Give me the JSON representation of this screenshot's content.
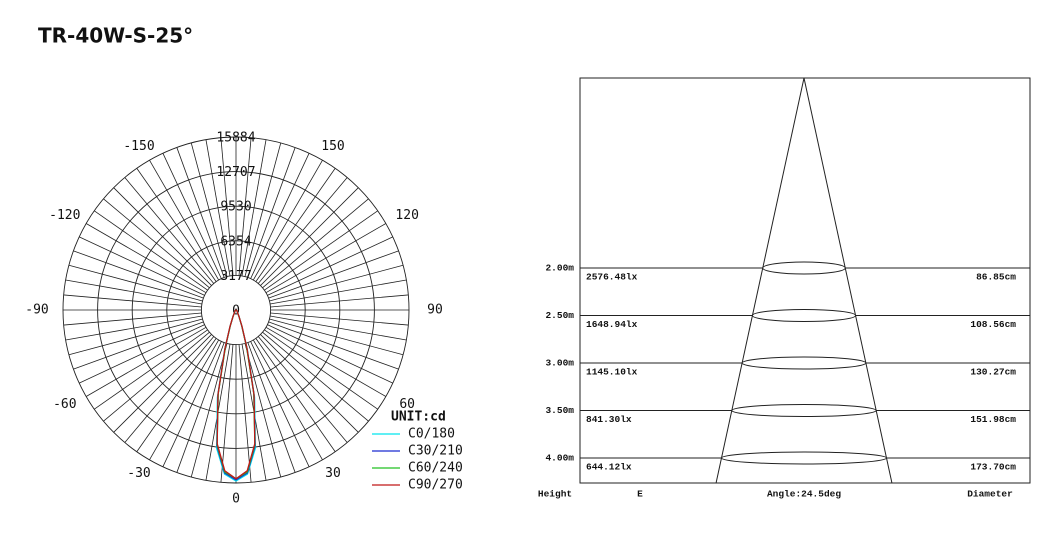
{
  "title": "TR-40W-S-25°",
  "chart_data": [
    {
      "type": "polar",
      "unit_label": "UNIT:cd",
      "rlim": [
        0,
        15884
      ],
      "rticks": [
        0,
        3177,
        6354,
        9530,
        12707,
        15884
      ],
      "angle_ticks": [
        -150,
        -120,
        -90,
        -60,
        -30,
        0,
        30,
        60,
        90,
        120,
        150
      ],
      "angles": [
        -90,
        -60,
        -40,
        -30,
        -25,
        -20,
        -16,
        -12,
        -8,
        -4,
        0,
        4,
        8,
        12,
        16,
        20,
        25,
        30,
        40,
        60,
        90
      ],
      "series": [
        {
          "name": "C0/180",
          "color": "#00e5ee",
          "values": [
            0,
            50,
            150,
            300,
            600,
            1600,
            3800,
            8200,
            12800,
            15100,
            15700,
            15100,
            12800,
            8200,
            3800,
            1600,
            600,
            300,
            150,
            50,
            0
          ]
        },
        {
          "name": "C30/210",
          "color": "#1a2ad0",
          "values": [
            0,
            50,
            150,
            300,
            600,
            1500,
            3600,
            7900,
            12600,
            15000,
            15600,
            15000,
            12600,
            7900,
            3600,
            1500,
            600,
            300,
            150,
            50,
            0
          ]
        },
        {
          "name": "C60/240",
          "color": "#22c022",
          "values": [
            0,
            50,
            150,
            300,
            600,
            1500,
            3500,
            7800,
            12500,
            14900,
            15500,
            14900,
            12500,
            7800,
            3500,
            1500,
            600,
            300,
            150,
            50,
            0
          ]
        },
        {
          "name": "C90/270",
          "color": "#c01818",
          "values": [
            0,
            60,
            160,
            320,
            650,
            1600,
            3700,
            8000,
            12400,
            14800,
            15500,
            14800,
            12400,
            8000,
            3700,
            1600,
            650,
            320,
            160,
            60,
            0
          ]
        }
      ]
    },
    {
      "type": "cone",
      "angle": 24.5,
      "angle_label": "Angle:24.5deg",
      "headers": [
        "Height",
        "E",
        "Diameter"
      ],
      "heights": [
        2,
        2.5,
        3,
        3.5,
        4
      ],
      "height_labels": [
        "2.00m",
        "2.50m",
        "3.00m",
        "3.50m",
        "4.00m"
      ],
      "illuminance_labels": [
        "2576.48lx",
        "1648.94lx",
        "1145.10lx",
        "841.30lx",
        "644.12lx"
      ],
      "diameters": [
        86.85,
        108.56,
        130.27,
        151.98,
        173.7
      ],
      "diameter_labels": [
        "86.85cm",
        "108.56cm",
        "130.27cm",
        "151.98cm",
        "173.70cm"
      ]
    }
  ]
}
